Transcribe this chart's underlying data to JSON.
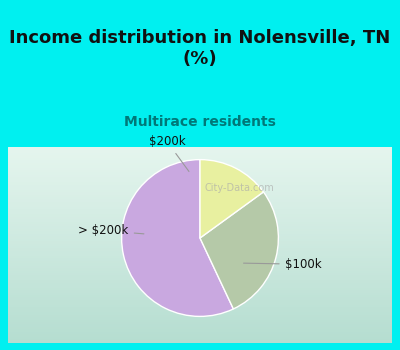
{
  "title": "Income distribution in Nolensville, TN\n(%)",
  "subtitle": "Multirace residents",
  "slices": [
    {
      "label": "$100k",
      "value": 57,
      "color": "#c9a8e0"
    },
    {
      "label": "> $200k",
      "value": 28,
      "color": "#b5c9a8"
    },
    {
      "label": "$200k",
      "value": 15,
      "color": "#e8f0a0"
    }
  ],
  "bg_top": "#00f0f0",
  "bg_chart_top": "#b5ddd0",
  "bg_chart_bottom": "#e5f5ee",
  "title_color": "#111111",
  "subtitle_color": "#007878",
  "label_color": "#111111",
  "watermark": "City-Data.com",
  "startangle": 90
}
